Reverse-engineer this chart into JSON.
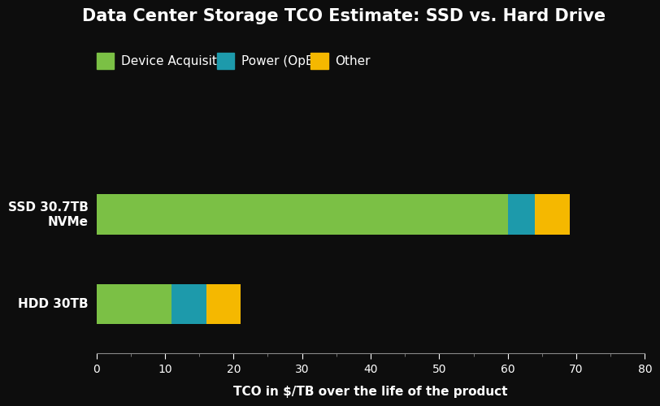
{
  "title": "Data Center Storage TCO Estimate: SSD vs. Hard Drive",
  "xlabel": "TCO in $/TB over the life of the product",
  "categories": [
    "SSD 30.7TB\nNVMe",
    "HDD 30TB"
  ],
  "segments": {
    "Device Acquisition": [
      60,
      11
    ],
    "Power (OpEx)": [
      4,
      5
    ],
    "Other": [
      5,
      5
    ]
  },
  "colors": {
    "Device Acquisition": "#7bc045",
    "Power (OpEx)": "#1d9aab",
    "Other": "#f5b800"
  },
  "legend_labels": [
    "Device Acquisition",
    "Power (OpEx)",
    "Other"
  ],
  "xlim": [
    0,
    80
  ],
  "xticks": [
    0,
    10,
    20,
    30,
    40,
    50,
    60,
    70,
    80
  ],
  "background_color": "#0d0d0d",
  "text_color": "#ffffff",
  "bar_height": 0.45,
  "title_fontsize": 15,
  "label_fontsize": 11,
  "tick_fontsize": 10,
  "legend_fontsize": 11
}
